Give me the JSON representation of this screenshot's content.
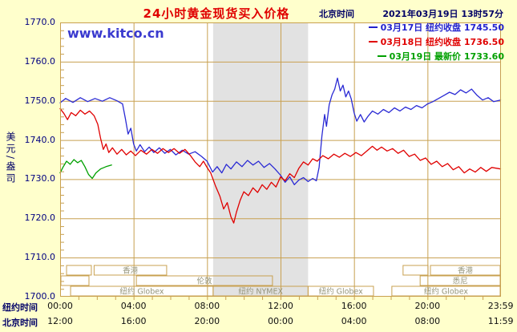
{
  "title": "24小时黄金现货买入价格",
  "header": {
    "timezone_label": "北京时间",
    "datetime": "2021年03月19日 13时57分"
  },
  "watermark": "www.kitco.cn",
  "legend": [
    {
      "text": "03月17日 纽约收盘 1745.50",
      "color": "#2222CC"
    },
    {
      "text": "03月18日 纽约收盘 1736.50",
      "color": "#E00000"
    },
    {
      "text": "03月19日 最新价 1733.60",
      "color": "#00A000"
    }
  ],
  "y_axis": {
    "unit": "美元/盎司",
    "tick_values": [
      1770,
      1760,
      1750,
      1740,
      1730,
      1720,
      1710,
      1700
    ],
    "tick_labels": [
      "1770.0",
      "1760.0",
      "1750.0",
      "1740.0",
      "1730.0",
      "1720.0",
      "1710.0",
      "1700.0"
    ]
  },
  "x_axis": {
    "tick_hours": [
      0,
      4,
      8,
      12,
      16,
      20,
      23.983
    ],
    "rows": [
      {
        "label": "纽约时间",
        "ticks": [
          "00:00",
          "04:00",
          "08:00",
          "12:00",
          "16:00",
          "20:00",
          "23:59"
        ]
      },
      {
        "label": "北京时间",
        "ticks": [
          "12:00",
          "16:00",
          "20:00",
          "00:00",
          "04:00",
          "08:00",
          "11:59"
        ]
      }
    ]
  },
  "colors": {
    "background": "#FFFFCC",
    "plot_bg": "#FFFFFF",
    "grid": "#C8A050",
    "band": "#E2E2E2",
    "title": "#E00000",
    "axis_text": "#000066",
    "session_text": "#94947A"
  },
  "chart_data": {
    "type": "line",
    "title": "24小时黄金现货买入价格",
    "xlabel": "纽约时间 / 北京时间",
    "ylabel": "美元/盎司",
    "xlim": [
      0,
      24
    ],
    "ylim": [
      1700,
      1770
    ],
    "y_ticks": [
      1700,
      1710,
      1720,
      1730,
      1740,
      1750,
      1760,
      1770
    ],
    "grid": true,
    "legend_position": "top-right",
    "nymex_band": {
      "start_h": 8.33,
      "end_h": 13.5
    },
    "sessions": [
      {
        "row": 1,
        "start_h": 0.35,
        "end_h": 1.7,
        "label": ""
      },
      {
        "row": 1,
        "start_h": 1.85,
        "end_h": 5.8,
        "label": "香港"
      },
      {
        "row": 1,
        "start_h": 18.67,
        "end_h": 20.03,
        "label": ""
      },
      {
        "row": 1,
        "start_h": 20.16,
        "end_h": 24.0,
        "label": "香港"
      },
      {
        "row": 2,
        "start_h": 0.0,
        "end_h": 1.57,
        "label": ""
      },
      {
        "row": 2,
        "start_h": 4.15,
        "end_h": 11.56,
        "label": "伦敦"
      },
      {
        "row": 2,
        "start_h": 19.6,
        "end_h": 24.0,
        "label": "悉尼"
      },
      {
        "row": 3,
        "start_h": 0.57,
        "end_h": 8.33,
        "label": "纽约 Globex"
      },
      {
        "row": 3,
        "start_h": 8.33,
        "end_h": 13.5,
        "label": "纽约 NYMEX"
      },
      {
        "row": 3,
        "start_h": 13.5,
        "end_h": 17.06,
        "label": "纽约 Globex"
      },
      {
        "row": 3,
        "start_h": 18.06,
        "end_h": 24.0,
        "label": "纽约 Globex"
      }
    ],
    "series": [
      {
        "name": "03月17日 纽约收盘",
        "close": 1745.5,
        "color": "#2A2AD4",
        "points": [
          [
            0,
            1749.5
          ],
          [
            0.3,
            1750.6
          ],
          [
            0.7,
            1749.6
          ],
          [
            1.1,
            1750.8
          ],
          [
            1.5,
            1749.8
          ],
          [
            1.9,
            1750.6
          ],
          [
            2.3,
            1749.9
          ],
          [
            2.7,
            1750.8
          ],
          [
            3.1,
            1750.0
          ],
          [
            3.4,
            1749.2
          ],
          [
            3.55,
            1745.5
          ],
          [
            3.7,
            1741.5
          ],
          [
            3.85,
            1743.0
          ],
          [
            4.0,
            1739.0
          ],
          [
            4.15,
            1737.2
          ],
          [
            4.35,
            1738.8
          ],
          [
            4.6,
            1737.0
          ],
          [
            4.85,
            1738.2
          ],
          [
            5.1,
            1736.8
          ],
          [
            5.4,
            1738.0
          ],
          [
            5.7,
            1736.6
          ],
          [
            6.0,
            1737.6
          ],
          [
            6.3,
            1736.2
          ],
          [
            6.65,
            1737.4
          ],
          [
            7.0,
            1736.4
          ],
          [
            7.35,
            1737.0
          ],
          [
            7.7,
            1735.8
          ],
          [
            8.0,
            1734.6
          ],
          [
            8.3,
            1731.8
          ],
          [
            8.55,
            1733.2
          ],
          [
            8.8,
            1731.6
          ],
          [
            9.05,
            1733.8
          ],
          [
            9.3,
            1732.6
          ],
          [
            9.6,
            1734.4
          ],
          [
            9.9,
            1733.2
          ],
          [
            10.2,
            1734.8
          ],
          [
            10.5,
            1733.6
          ],
          [
            10.8,
            1734.6
          ],
          [
            11.1,
            1733.0
          ],
          [
            11.4,
            1734.0
          ],
          [
            11.7,
            1732.6
          ],
          [
            12.0,
            1731.0
          ],
          [
            12.25,
            1729.2
          ],
          [
            12.5,
            1730.6
          ],
          [
            12.75,
            1728.6
          ],
          [
            13.0,
            1729.8
          ],
          [
            13.25,
            1730.4
          ],
          [
            13.5,
            1729.4
          ],
          [
            13.75,
            1730.2
          ],
          [
            13.95,
            1729.6
          ],
          [
            14.1,
            1733.0
          ],
          [
            14.25,
            1741.0
          ],
          [
            14.4,
            1746.5
          ],
          [
            14.5,
            1743.5
          ],
          [
            14.65,
            1749.0
          ],
          [
            14.8,
            1751.5
          ],
          [
            14.95,
            1753.0
          ],
          [
            15.1,
            1755.8
          ],
          [
            15.25,
            1752.5
          ],
          [
            15.4,
            1754.0
          ],
          [
            15.55,
            1751.0
          ],
          [
            15.7,
            1752.5
          ],
          [
            15.85,
            1750.5
          ],
          [
            16.0,
            1747.0
          ],
          [
            16.15,
            1744.8
          ],
          [
            16.35,
            1746.5
          ],
          [
            16.55,
            1744.6
          ],
          [
            16.75,
            1746.0
          ],
          [
            17.0,
            1747.4
          ],
          [
            17.3,
            1746.6
          ],
          [
            17.6,
            1747.8
          ],
          [
            17.9,
            1747.0
          ],
          [
            18.2,
            1748.2
          ],
          [
            18.5,
            1747.4
          ],
          [
            18.8,
            1748.4
          ],
          [
            19.1,
            1747.8
          ],
          [
            19.4,
            1748.8
          ],
          [
            19.7,
            1748.2
          ],
          [
            20.0,
            1749.2
          ],
          [
            20.3,
            1749.8
          ],
          [
            20.6,
            1750.6
          ],
          [
            20.9,
            1751.4
          ],
          [
            21.2,
            1752.2
          ],
          [
            21.5,
            1751.6
          ],
          [
            21.8,
            1752.8
          ],
          [
            22.1,
            1752.0
          ],
          [
            22.4,
            1753.0
          ],
          [
            22.7,
            1751.4
          ],
          [
            23.0,
            1750.2
          ],
          [
            23.3,
            1750.8
          ],
          [
            23.6,
            1749.8
          ],
          [
            23.98,
            1750.2
          ]
        ]
      },
      {
        "name": "03月18日 纽约收盘",
        "close": 1736.5,
        "color": "#E00000",
        "points": [
          [
            0,
            1748.0
          ],
          [
            0.2,
            1746.8
          ],
          [
            0.4,
            1745.2
          ],
          [
            0.6,
            1747.0
          ],
          [
            0.85,
            1746.2
          ],
          [
            1.1,
            1747.6
          ],
          [
            1.35,
            1746.6
          ],
          [
            1.6,
            1747.4
          ],
          [
            1.85,
            1746.2
          ],
          [
            2.05,
            1744.0
          ],
          [
            2.2,
            1740.5
          ],
          [
            2.35,
            1737.6
          ],
          [
            2.5,
            1739.0
          ],
          [
            2.65,
            1736.8
          ],
          [
            2.85,
            1738.0
          ],
          [
            3.1,
            1736.4
          ],
          [
            3.35,
            1737.6
          ],
          [
            3.6,
            1736.2
          ],
          [
            3.85,
            1737.2
          ],
          [
            4.1,
            1736.0
          ],
          [
            4.4,
            1737.4
          ],
          [
            4.7,
            1736.4
          ],
          [
            5.0,
            1737.6
          ],
          [
            5.3,
            1736.6
          ],
          [
            5.6,
            1737.8
          ],
          [
            5.9,
            1736.8
          ],
          [
            6.2,
            1737.8
          ],
          [
            6.5,
            1736.6
          ],
          [
            6.8,
            1737.6
          ],
          [
            7.1,
            1736.0
          ],
          [
            7.35,
            1734.4
          ],
          [
            7.6,
            1733.2
          ],
          [
            7.8,
            1734.6
          ],
          [
            8.0,
            1733.0
          ],
          [
            8.2,
            1731.6
          ],
          [
            8.45,
            1728.4
          ],
          [
            8.7,
            1725.6
          ],
          [
            8.9,
            1722.4
          ],
          [
            9.1,
            1724.0
          ],
          [
            9.3,
            1720.4
          ],
          [
            9.45,
            1718.8
          ],
          [
            9.6,
            1721.6
          ],
          [
            9.8,
            1724.6
          ],
          [
            10.0,
            1726.8
          ],
          [
            10.25,
            1725.8
          ],
          [
            10.5,
            1727.8
          ],
          [
            10.75,
            1726.6
          ],
          [
            11.0,
            1728.6
          ],
          [
            11.25,
            1727.4
          ],
          [
            11.5,
            1729.2
          ],
          [
            11.75,
            1728.0
          ],
          [
            12.0,
            1730.6
          ],
          [
            12.25,
            1729.6
          ],
          [
            12.5,
            1731.4
          ],
          [
            12.75,
            1730.4
          ],
          [
            13.0,
            1732.8
          ],
          [
            13.25,
            1734.4
          ],
          [
            13.5,
            1733.6
          ],
          [
            13.75,
            1735.2
          ],
          [
            14.0,
            1734.6
          ],
          [
            14.3,
            1736.0
          ],
          [
            14.6,
            1735.2
          ],
          [
            14.9,
            1736.4
          ],
          [
            15.2,
            1735.6
          ],
          [
            15.5,
            1736.6
          ],
          [
            15.8,
            1735.8
          ],
          [
            16.1,
            1736.8
          ],
          [
            16.4,
            1736.0
          ],
          [
            16.7,
            1737.2
          ],
          [
            17.0,
            1738.4
          ],
          [
            17.25,
            1737.4
          ],
          [
            17.5,
            1738.2
          ],
          [
            17.8,
            1737.2
          ],
          [
            18.1,
            1737.8
          ],
          [
            18.4,
            1736.6
          ],
          [
            18.7,
            1737.4
          ],
          [
            19.0,
            1735.8
          ],
          [
            19.3,
            1736.4
          ],
          [
            19.6,
            1734.8
          ],
          [
            19.9,
            1735.4
          ],
          [
            20.2,
            1733.8
          ],
          [
            20.5,
            1734.6
          ],
          [
            20.8,
            1733.2
          ],
          [
            21.1,
            1734.0
          ],
          [
            21.4,
            1732.4
          ],
          [
            21.7,
            1733.2
          ],
          [
            22.0,
            1731.6
          ],
          [
            22.3,
            1732.6
          ],
          [
            22.6,
            1731.8
          ],
          [
            22.9,
            1733.0
          ],
          [
            23.2,
            1732.0
          ],
          [
            23.5,
            1733.0
          ],
          [
            23.98,
            1732.6
          ]
        ]
      },
      {
        "name": "03月19日 最新价",
        "latest": 1733.6,
        "color": "#00A000",
        "points": [
          [
            0,
            1731.6
          ],
          [
            0.15,
            1733.0
          ],
          [
            0.35,
            1734.6
          ],
          [
            0.55,
            1733.8
          ],
          [
            0.75,
            1735.0
          ],
          [
            0.95,
            1734.2
          ],
          [
            1.15,
            1734.8
          ],
          [
            1.35,
            1733.2
          ],
          [
            1.55,
            1731.2
          ],
          [
            1.75,
            1730.2
          ],
          [
            1.95,
            1731.6
          ],
          [
            2.2,
            1732.6
          ],
          [
            2.5,
            1733.2
          ],
          [
            2.8,
            1733.6
          ]
        ]
      }
    ]
  }
}
